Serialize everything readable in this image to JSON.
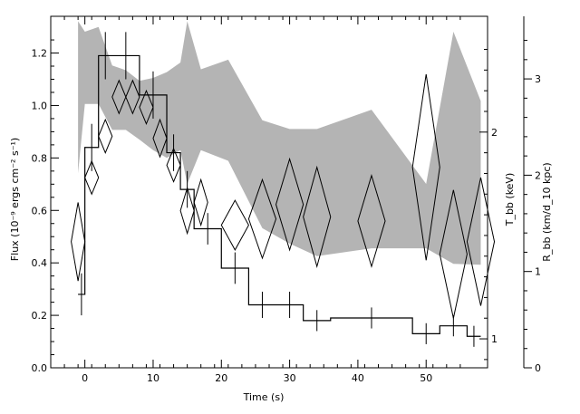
{
  "chart_data": {
    "type": "line",
    "xlabel": "Time (s)",
    "ylabel": "Flux (10⁻⁹ ergs cm⁻² s⁻¹)",
    "y2label": "T_bb (keV)",
    "y3label": "R_bb (km/d_10 kpc)",
    "xlim": [
      -5,
      59
    ],
    "ylim": [
      0,
      1.34
    ],
    "y2lim": [
      0.86,
      2.56
    ],
    "y3lim": [
      0,
      3.65
    ],
    "grid": false,
    "x_ticks": [
      0,
      10,
      20,
      30,
      40,
      50
    ],
    "y_ticks": [
      "0.0",
      "0.2",
      "0.4",
      "0.6",
      "0.8",
      "1.0",
      "1.2"
    ],
    "y2_ticks": [
      "1",
      "2"
    ],
    "y3_ticks": [
      "0",
      "1",
      "2",
      "3"
    ],
    "flux_series": {
      "style": "histogram-with-errorbars",
      "bins": [
        {
          "x0": -1,
          "x1": 0,
          "y": 0.28,
          "yerr": 0.08
        },
        {
          "x0": 0,
          "x1": 2,
          "y": 0.84,
          "yerr": 0.09
        },
        {
          "x0": 2,
          "x1": 4,
          "y": 1.19,
          "yerr": 0.09
        },
        {
          "x0": 4,
          "x1": 8,
          "y": 1.19,
          "yerr": 0.09
        },
        {
          "x0": 8,
          "x1": 12,
          "y": 1.04,
          "yerr": 0.09
        },
        {
          "x0": 12,
          "x1": 14,
          "y": 0.82,
          "yerr": 0.07
        },
        {
          "x0": 14,
          "x1": 16,
          "y": 0.68,
          "yerr": 0.07
        },
        {
          "x0": 16,
          "x1": 20,
          "y": 0.53,
          "yerr": 0.06
        },
        {
          "x0": 20,
          "x1": 24,
          "y": 0.38,
          "yerr": 0.06
        },
        {
          "x0": 24,
          "x1": 28,
          "y": 0.24,
          "yerr": 0.05
        },
        {
          "x0": 28,
          "x1": 32,
          "y": 0.24,
          "yerr": 0.05
        },
        {
          "x0": 32,
          "x1": 36,
          "y": 0.18,
          "yerr": 0.04
        },
        {
          "x0": 36,
          "x1": 48,
          "y": 0.19,
          "yerr": 0.04
        },
        {
          "x0": 48,
          "x1": 52,
          "y": 0.13,
          "yerr": 0.04
        },
        {
          "x0": 52,
          "x1": 56,
          "y": 0.16,
          "yerr": 0.04
        },
        {
          "x0": 56,
          "x1": 58,
          "y": 0.12,
          "yerr": 0.04
        }
      ]
    },
    "temperature_series": {
      "style": "diamonds",
      "axis": "T_bb",
      "points": [
        {
          "x": -1,
          "dx": 1,
          "y": 1.47,
          "dy": 0.19
        },
        {
          "x": 1,
          "dx": 1,
          "y": 1.78,
          "dy": 0.08
        },
        {
          "x": 3,
          "dx": 1,
          "y": 1.98,
          "dy": 0.08
        },
        {
          "x": 5,
          "dx": 1,
          "y": 2.17,
          "dy": 0.08
        },
        {
          "x": 7,
          "dx": 1,
          "y": 2.17,
          "dy": 0.08
        },
        {
          "x": 9,
          "dx": 1,
          "y": 2.12,
          "dy": 0.08
        },
        {
          "x": 11,
          "dx": 1,
          "y": 1.97,
          "dy": 0.09
        },
        {
          "x": 13,
          "dx": 1,
          "y": 1.84,
          "dy": 0.08
        },
        {
          "x": 15,
          "dx": 1,
          "y": 1.62,
          "dy": 0.11
        },
        {
          "x": 17,
          "dx": 1,
          "y": 1.66,
          "dy": 0.11
        },
        {
          "x": 22,
          "dx": 2,
          "y": 1.55,
          "dy": 0.12
        },
        {
          "x": 26,
          "dx": 2,
          "y": 1.58,
          "dy": 0.19
        },
        {
          "x": 30,
          "dx": 2,
          "y": 1.65,
          "dy": 0.22
        },
        {
          "x": 34,
          "dx": 2,
          "y": 1.59,
          "dy": 0.24
        },
        {
          "x": 42,
          "dx": 2,
          "y": 1.57,
          "dy": 0.22
        },
        {
          "x": 50,
          "dx": 2,
          "y": 1.83,
          "dy": 0.45
        },
        {
          "x": 54,
          "dx": 2,
          "y": 1.41,
          "dy": 0.31
        },
        {
          "x": 58,
          "dx": 2,
          "y": 1.47,
          "dy": 0.31
        }
      ]
    },
    "radius_band": {
      "style": "shaded-band",
      "axis": "R_bb",
      "color": "#b4b4b4",
      "x": [
        -1,
        0,
        2,
        4,
        6,
        8,
        10,
        12,
        14,
        15,
        17,
        21,
        26,
        30,
        34,
        42,
        50,
        54,
        58
      ],
      "upper": [
        3.6,
        3.49,
        3.54,
        3.14,
        3.09,
        2.98,
        3.01,
        3.07,
        3.17,
        3.6,
        3.1,
        3.2,
        2.57,
        2.48,
        2.48,
        2.68,
        1.91,
        3.49,
        2.77
      ],
      "lower": [
        2.02,
        2.74,
        2.74,
        2.47,
        2.47,
        2.37,
        2.26,
        2.18,
        2.26,
        1.91,
        2.26,
        2.15,
        1.45,
        1.29,
        1.16,
        1.24,
        1.24,
        1.08,
        1.07
      ]
    },
    "colors": {
      "line": "#000000",
      "band": "#b4b4b4",
      "background": "#ffffff"
    }
  }
}
